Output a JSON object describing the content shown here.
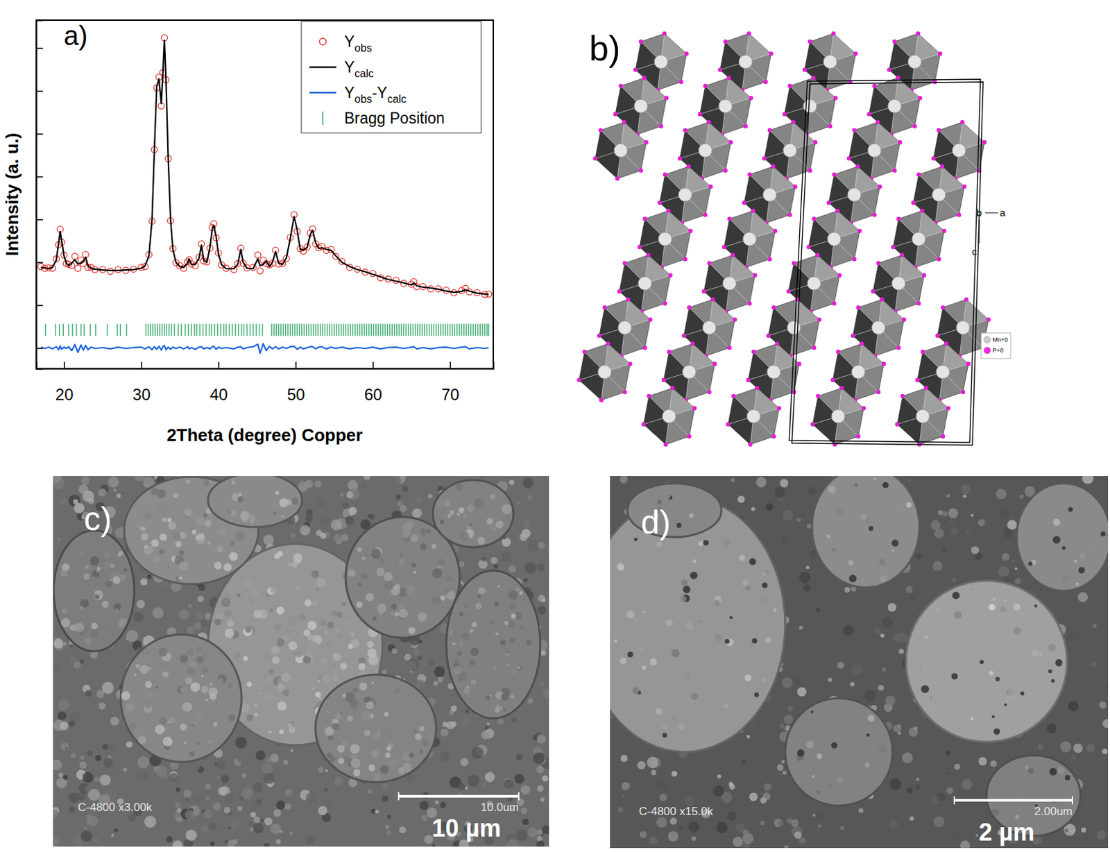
{
  "chart_data": {
    "type": "line",
    "xlabel": "2Theta (degree) Copper",
    "ylabel": "Intensity (a. u.)",
    "annotations": [
      "a)"
    ],
    "xlim": [
      16.4,
      75.6
    ],
    "xticks": [
      20,
      30,
      40,
      50,
      60,
      70
    ],
    "ylim": [
      -0.48,
      7.65
    ],
    "yticks": [
      0,
      1,
      2,
      3,
      4,
      5,
      6,
      7
    ],
    "tick_labels": "x",
    "legend": "upper right",
    "x": [
      17.0,
      17.5,
      18.0,
      18.5,
      19.0,
      19.3,
      19.5,
      19.7,
      20.0,
      20.3,
      20.6,
      21.0,
      21.4,
      21.8,
      22.2,
      22.5,
      22.8,
      23.1,
      23.5,
      24.0,
      25.0,
      26.0,
      27.0,
      28.0,
      29.0,
      30.0,
      30.5,
      31.0,
      31.4,
      31.7,
      32.0,
      32.3,
      32.6,
      32.8,
      33.0,
      33.2,
      33.5,
      33.8,
      34.1,
      34.5,
      35.0,
      35.5,
      36.0,
      36.2,
      36.5,
      37.0,
      37.5,
      37.8,
      38.1,
      38.5,
      38.9,
      39.2,
      39.4,
      39.7,
      40.0,
      40.4,
      41.0,
      42.0,
      42.5,
      42.9,
      43.2,
      43.7,
      44.5,
      45.1,
      45.4,
      45.8,
      46.2,
      46.6,
      47.0,
      47.4,
      47.8,
      48.3,
      48.8,
      49.3,
      49.8,
      50.2,
      50.6,
      51.0,
      51.5,
      51.9,
      52.2,
      52.6,
      53.0,
      53.4,
      54.0,
      54.6,
      55.2,
      56.0,
      57.0,
      58.0,
      59.0,
      60.0,
      61.0,
      62.0,
      63.0,
      64.0,
      65.0,
      65.3,
      65.7,
      66.5,
      67.5,
      68.5,
      69.5,
      70.5,
      71.5,
      72.0,
      72.5,
      73.5,
      74.5,
      75.0
    ],
    "series": [
      {
        "name": "Yobs",
        "type": "scatter",
        "marker": "open-circle",
        "color": "#e3332b",
        "values": [
          1.9,
          1.86,
          1.87,
          1.86,
          2.08,
          2.41,
          2.77,
          2.47,
          2.17,
          1.97,
          1.95,
          1.92,
          2.14,
          1.86,
          2.05,
          1.97,
          2.18,
          1.88,
          1.88,
          1.83,
          1.83,
          1.79,
          1.83,
          1.81,
          1.84,
          1.88,
          1.9,
          2.18,
          2.96,
          4.63,
          6.07,
          6.32,
          5.65,
          6.43,
          7.24,
          6.26,
          4.42,
          2.97,
          2.32,
          1.99,
          1.92,
          1.86,
          2.01,
          2.06,
          1.96,
          1.92,
          2.12,
          2.43,
          2.03,
          2.01,
          2.33,
          2.81,
          2.9,
          2.57,
          2.22,
          1.94,
          1.86,
          1.83,
          1.97,
          2.33,
          1.98,
          1.87,
          1.88,
          2.17,
          1.8,
          2.05,
          1.97,
          1.94,
          1.98,
          2.28,
          1.96,
          1.97,
          2.09,
          2.58,
          3.11,
          2.72,
          2.32,
          2.26,
          2.36,
          2.68,
          2.78,
          2.43,
          2.34,
          2.37,
          2.28,
          2.3,
          2.14,
          2.02,
          1.88,
          1.84,
          1.77,
          1.74,
          1.64,
          1.61,
          1.58,
          1.51,
          1.49,
          1.55,
          1.43,
          1.43,
          1.38,
          1.38,
          1.35,
          1.29,
          1.34,
          1.39,
          1.31,
          1.29,
          1.25,
          1.26
        ]
      },
      {
        "name": "Ycalc",
        "type": "line",
        "color": "#000000",
        "values": [
          1.88,
          1.87,
          1.85,
          1.88,
          2.05,
          2.45,
          2.72,
          2.5,
          2.15,
          1.98,
          1.92,
          1.98,
          2.06,
          1.96,
          1.98,
          2.02,
          2.12,
          1.92,
          1.86,
          1.84,
          1.82,
          1.81,
          1.81,
          1.82,
          1.83,
          1.86,
          1.92,
          2.15,
          3.0,
          4.6,
          6.1,
          6.28,
          5.7,
          6.4,
          7.18,
          6.3,
          4.4,
          3.0,
          2.3,
          2.0,
          1.9,
          1.88,
          1.98,
          2.08,
          1.95,
          1.95,
          2.1,
          2.4,
          2.05,
          2.0,
          2.35,
          2.78,
          2.86,
          2.6,
          2.2,
          1.95,
          1.85,
          1.85,
          1.95,
          2.3,
          2.0,
          1.86,
          1.85,
          2.08,
          1.92,
          1.95,
          2.03,
          1.9,
          2.0,
          2.25,
          1.98,
          1.95,
          2.1,
          2.55,
          3.07,
          2.75,
          2.3,
          2.28,
          2.35,
          2.65,
          2.75,
          2.45,
          2.32,
          2.34,
          2.3,
          2.28,
          2.15,
          2.0,
          1.9,
          1.83,
          1.78,
          1.72,
          1.66,
          1.6,
          1.56,
          1.52,
          1.47,
          1.52,
          1.45,
          1.42,
          1.4,
          1.37,
          1.33,
          1.3,
          1.32,
          1.36,
          1.33,
          1.28,
          1.26,
          1.25
        ]
      },
      {
        "name": "Yobs-Ycalc",
        "type": "line",
        "color": "#1a63d8",
        "values": [
          0.02,
          -0.01,
          0.02,
          -0.02,
          0.03,
          -0.04,
          0.05,
          -0.03,
          0.02,
          -0.01,
          0.03,
          -0.06,
          0.08,
          -0.1,
          0.07,
          -0.05,
          0.06,
          -0.04,
          0.02,
          -0.01,
          0.01,
          -0.02,
          0.02,
          -0.01,
          0.01,
          0.02,
          -0.02,
          0.03,
          -0.04,
          0.03,
          -0.03,
          0.04,
          -0.05,
          0.03,
          0.06,
          -0.04,
          0.02,
          -0.03,
          0.02,
          -0.01,
          0.02,
          -0.02,
          0.03,
          -0.02,
          0.01,
          -0.03,
          0.02,
          0.03,
          -0.02,
          0.01,
          -0.02,
          0.03,
          0.04,
          -0.03,
          0.02,
          -0.01,
          0.01,
          -0.02,
          0.02,
          0.03,
          -0.02,
          0.01,
          0.03,
          0.09,
          -0.12,
          0.1,
          -0.06,
          0.04,
          -0.02,
          0.03,
          -0.02,
          0.02,
          -0.01,
          0.03,
          0.04,
          -0.03,
          0.02,
          -0.02,
          0.01,
          0.03,
          0.03,
          -0.02,
          0.02,
          0.03,
          -0.02,
          0.02,
          -0.01,
          0.02,
          -0.02,
          0.01,
          -0.01,
          0.02,
          -0.02,
          0.01,
          0.02,
          -0.01,
          0.02,
          0.03,
          -0.02,
          0.01,
          -0.02,
          0.01,
          0.02,
          -0.01,
          0.02,
          0.03,
          -0.02,
          0.01,
          -0.01,
          0.01
        ]
      },
      {
        "name": "Bragg Position",
        "type": "bragg",
        "color": "#36a96c",
        "x": [
          17.6,
          18.9,
          19.4,
          19.9,
          20.6,
          21.1,
          21.6,
          22.2,
          22.6,
          23.4,
          24.1,
          25.6,
          26.9,
          27.3,
          28.1,
          30.6,
          30.9,
          31.2,
          31.5,
          31.8,
          32.1,
          32.4,
          32.7,
          33.0,
          33.3,
          33.6,
          33.9,
          34.3,
          34.8,
          35.2,
          35.7,
          36.1,
          36.5,
          36.9,
          37.2,
          37.6,
          38.0,
          38.4,
          38.8,
          39.1,
          39.5,
          39.9,
          40.3,
          40.7,
          41.0,
          41.4,
          41.8,
          42.2,
          42.6,
          43.0,
          43.3,
          43.7,
          44.1,
          44.5,
          44.9,
          45.3,
          45.7,
          46.9,
          47.2,
          47.5,
          47.8,
          48.1,
          48.4,
          48.7,
          49.0,
          49.3,
          49.6,
          49.9,
          50.2,
          50.5,
          50.8,
          51.1,
          51.4,
          51.7,
          52.0,
          52.3,
          52.6,
          52.9,
          53.2,
          53.5,
          53.8,
          54.1,
          54.4,
          54.7,
          55.0,
          55.3,
          55.6,
          55.9,
          56.2,
          56.5,
          56.8,
          57.1,
          57.4,
          57.7,
          58.0,
          58.3,
          58.6,
          58.9,
          59.2,
          59.5,
          59.8,
          60.1,
          60.4,
          60.7,
          61.0,
          61.3,
          61.6,
          61.9,
          62.2,
          62.5,
          62.8,
          63.1,
          63.4,
          63.7,
          64.0,
          64.3,
          64.6,
          64.9,
          65.2,
          65.5,
          65.8,
          66.1,
          66.4,
          66.7,
          67.0,
          67.3,
          67.6,
          67.9,
          68.2,
          68.5,
          68.8,
          69.1,
          69.4,
          69.7,
          70.0,
          70.3,
          70.6,
          70.9,
          71.2,
          71.5,
          71.8,
          72.1,
          72.4,
          72.7,
          73.0,
          73.3,
          73.6,
          73.9,
          74.2,
          74.5,
          74.8,
          75.0
        ]
      }
    ]
  },
  "panels": {
    "b": {
      "label": "b)",
      "axis_labels": [
        "b",
        "a",
        "c"
      ],
      "atom_labels": [
        "Mn+0",
        "P+0"
      ]
    },
    "c": {
      "label": "c)",
      "info": "C-4800 x3.00k",
      "scale_text": "10.0um",
      "scale_label": "10 µm"
    },
    "d": {
      "label": "d)",
      "info": "C-4800 x15.0k",
      "scale_text": "2.00um",
      "scale_label": "2 µm"
    }
  }
}
